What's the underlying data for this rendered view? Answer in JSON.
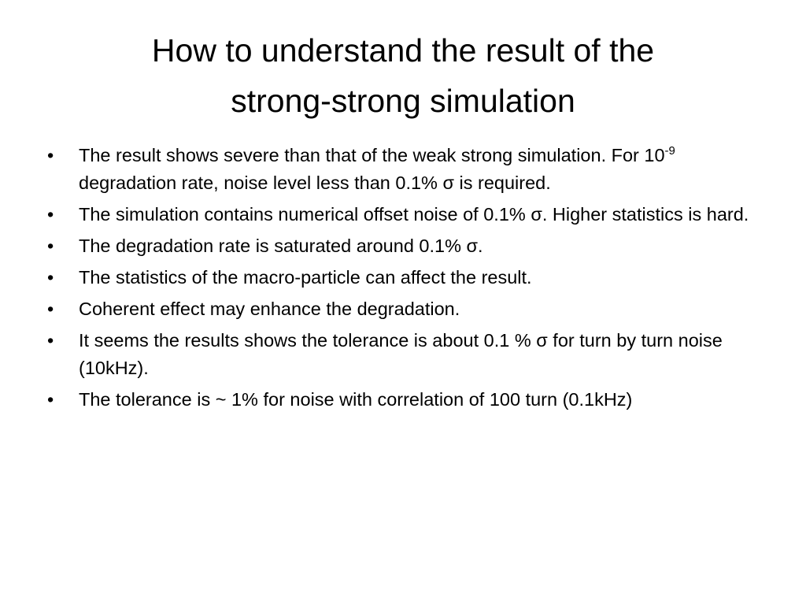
{
  "slide": {
    "title": "How to understand the result of the strong-strong simulation",
    "bullets": [
      {
        "text_before": "The result shows severe than that of the weak strong simulation. For 10",
        "superscript": "-9",
        "text_after": " degradation rate, noise level less than 0.1% σ is required."
      },
      "The simulation contains numerical offset noise of 0.1% σ. Higher statistics is hard.",
      "The degradation rate is saturated around 0.1% σ.",
      "The statistics of the macro-particle can affect the result.",
      "Coherent effect may enhance the degradation.",
      "It seems the results shows the tolerance is about 0.1 % σ for turn by turn noise (10kHz).",
      "The tolerance is ~ 1% for noise with correlation of 100 turn (0.1kHz)"
    ]
  }
}
